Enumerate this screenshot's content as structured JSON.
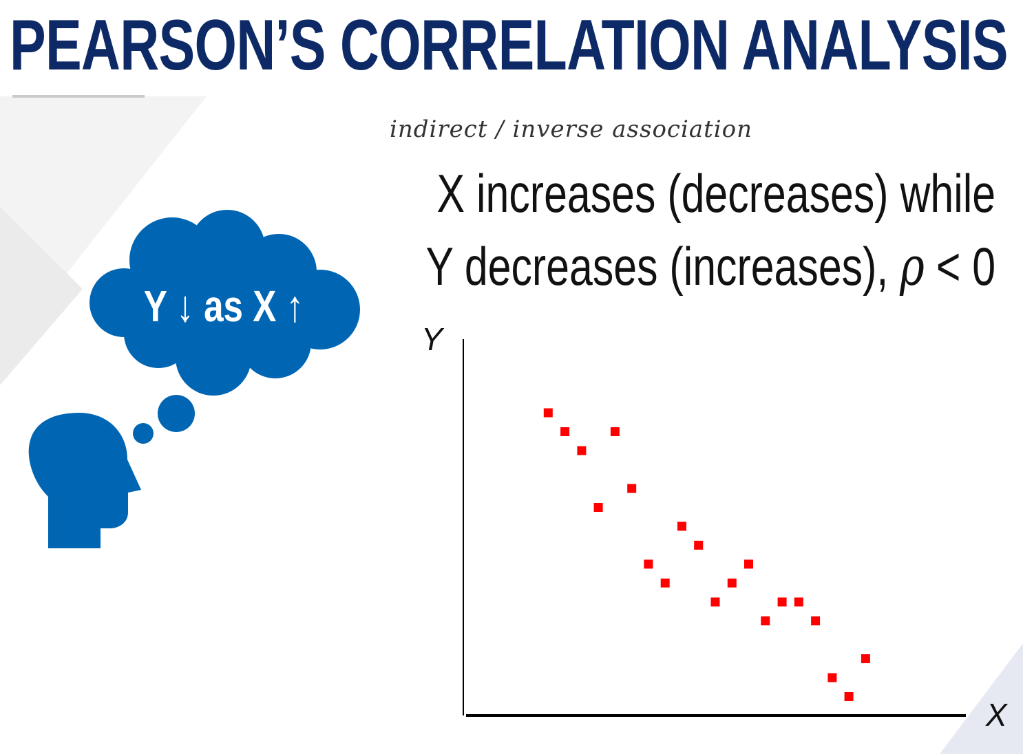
{
  "title": "PEARSON’S CORRELATION ANALYSIS",
  "handwritten_note": "indirect / inverse association",
  "statement": {
    "line1": "X increases (decreases) while",
    "line2_prefix": "Y decreases (increases), ",
    "rho_symbol": "ρ",
    "line2_suffix": " < 0"
  },
  "thought_bubble": {
    "text": "Y ↓ as X ↑"
  },
  "colors": {
    "title": "#0d2a67",
    "accent_blue": "#0066b3",
    "points": "#ff0000",
    "axis": "#000000"
  },
  "icons": [
    "head-silhouette-icon",
    "thought-bubble-icon"
  ],
  "chart_data": {
    "type": "scatter",
    "xlabel": "X",
    "ylabel": "Y",
    "xlim": [
      0,
      30
    ],
    "ylim": [
      0,
      20
    ],
    "grid": false,
    "points": [
      {
        "x": 5,
        "y": 16.0
      },
      {
        "x": 6,
        "y": 15.0
      },
      {
        "x": 7,
        "y": 14.0
      },
      {
        "x": 8,
        "y": 11.0
      },
      {
        "x": 9,
        "y": 15.0
      },
      {
        "x": 10,
        "y": 12.0
      },
      {
        "x": 11,
        "y": 8.0
      },
      {
        "x": 12,
        "y": 7.0
      },
      {
        "x": 13,
        "y": 10.0
      },
      {
        "x": 14,
        "y": 9.0
      },
      {
        "x": 15,
        "y": 6.0
      },
      {
        "x": 16,
        "y": 7.0
      },
      {
        "x": 17,
        "y": 8.0
      },
      {
        "x": 18,
        "y": 5.0
      },
      {
        "x": 19,
        "y": 6.0
      },
      {
        "x": 20,
        "y": 6.0
      },
      {
        "x": 21,
        "y": 5.0
      },
      {
        "x": 22,
        "y": 2.0
      },
      {
        "x": 23,
        "y": 1.0
      },
      {
        "x": 24,
        "y": 3.0
      }
    ]
  }
}
